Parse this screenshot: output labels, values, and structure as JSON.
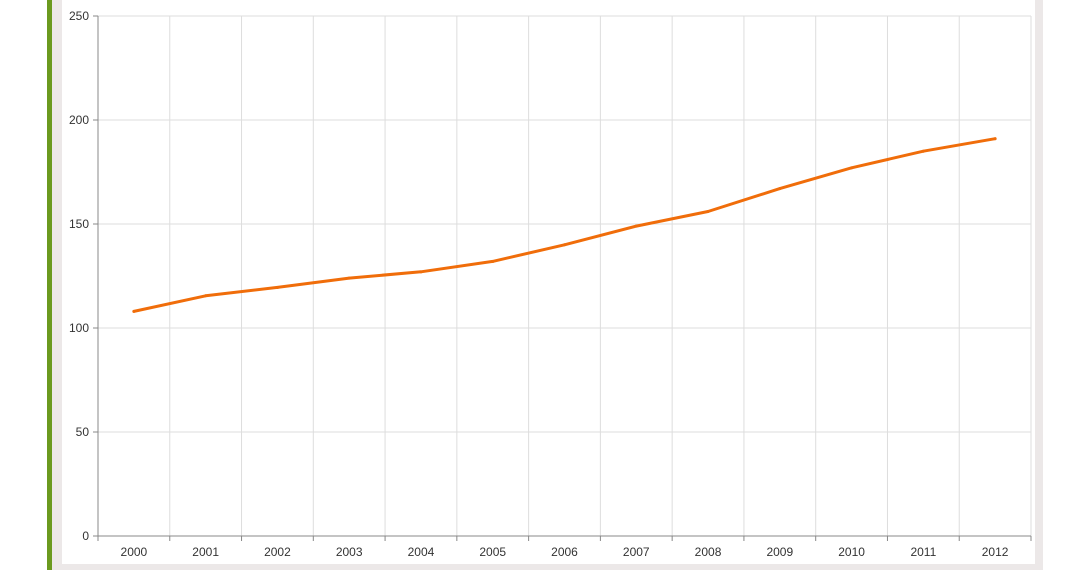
{
  "colors": {
    "accent_bar": "#6b9a1f",
    "panel_border": "#ece8e8",
    "grid": "#dddddd",
    "axis": "#888888",
    "series": "#f06d0a"
  },
  "chart_data": {
    "type": "line",
    "title": "",
    "xlabel": "",
    "ylabel": "",
    "x": [
      "2000",
      "2001",
      "2002",
      "2003",
      "2004",
      "2005",
      "2006",
      "2007",
      "2008",
      "2009",
      "2010",
      "2011",
      "2012"
    ],
    "series": [
      {
        "values": [
          108,
          115.5,
          119.5,
          124,
          127,
          132,
          140,
          149,
          156,
          167,
          177,
          185,
          191
        ]
      }
    ],
    "ylim": [
      0,
      250
    ],
    "yticks": [
      "0",
      "50",
      "100",
      "150",
      "200",
      "250"
    ],
    "grid": true,
    "legend": "none"
  }
}
